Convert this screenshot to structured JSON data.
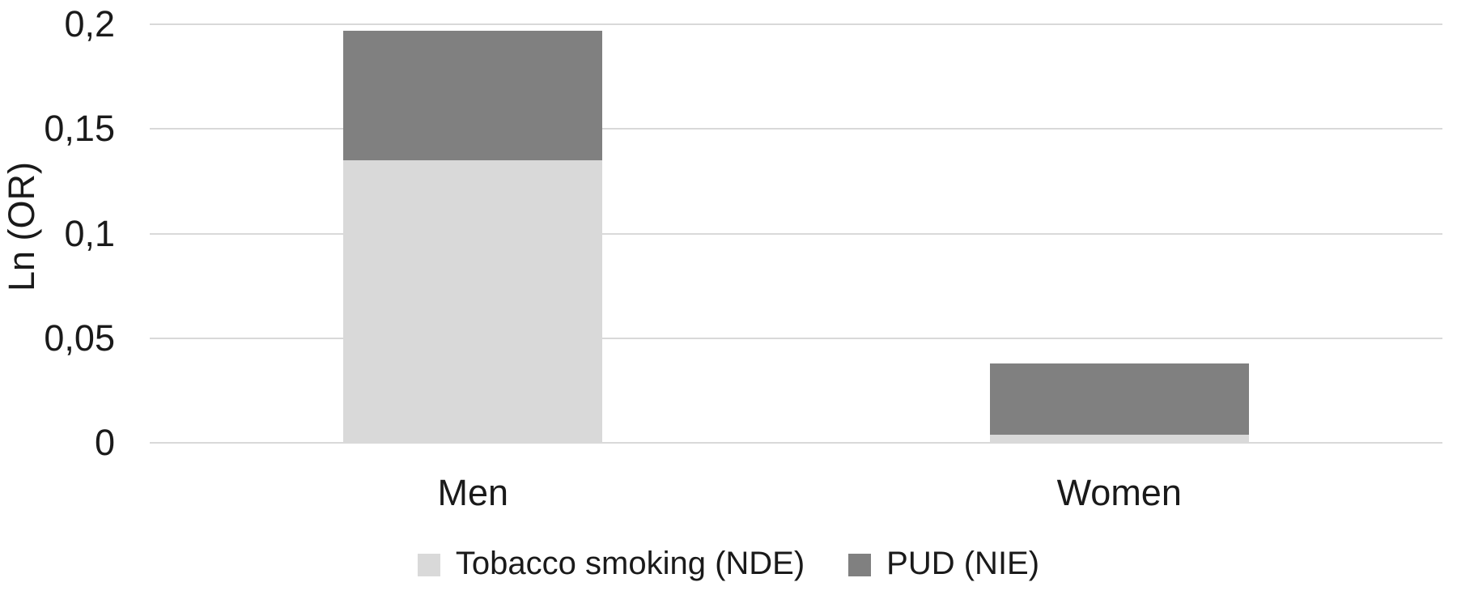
{
  "chart_data": {
    "type": "bar",
    "stacked": true,
    "title": "",
    "ylabel": "Ln (OR)",
    "xlabel": "",
    "ylim": [
      0,
      0.2
    ],
    "grid": true,
    "legend_position": "bottom",
    "categories": [
      "Men",
      "Women"
    ],
    "series": [
      {
        "name": "Tobacco smoking (NDE)",
        "color": "#d9d9d9",
        "values": [
          0.135,
          0.004
        ]
      },
      {
        "name": "PUD (NIE)",
        "color": "#808080",
        "values": [
          0.062,
          0.034
        ]
      }
    ],
    "totals": [
      0.197,
      0.038
    ],
    "yticks": [
      {
        "value": 0,
        "label": "0"
      },
      {
        "value": 0.05,
        "label": "0,05"
      },
      {
        "value": 0.1,
        "label": "0,1"
      },
      {
        "value": 0.15,
        "label": "0,15"
      },
      {
        "value": 0.2,
        "label": "0,2"
      }
    ]
  },
  "colors": {
    "background": "#ffffff",
    "gridline": "#d9d9d9",
    "text": "#1a1a1a",
    "series_nde": "#d9d9d9",
    "series_nie": "#808080"
  }
}
